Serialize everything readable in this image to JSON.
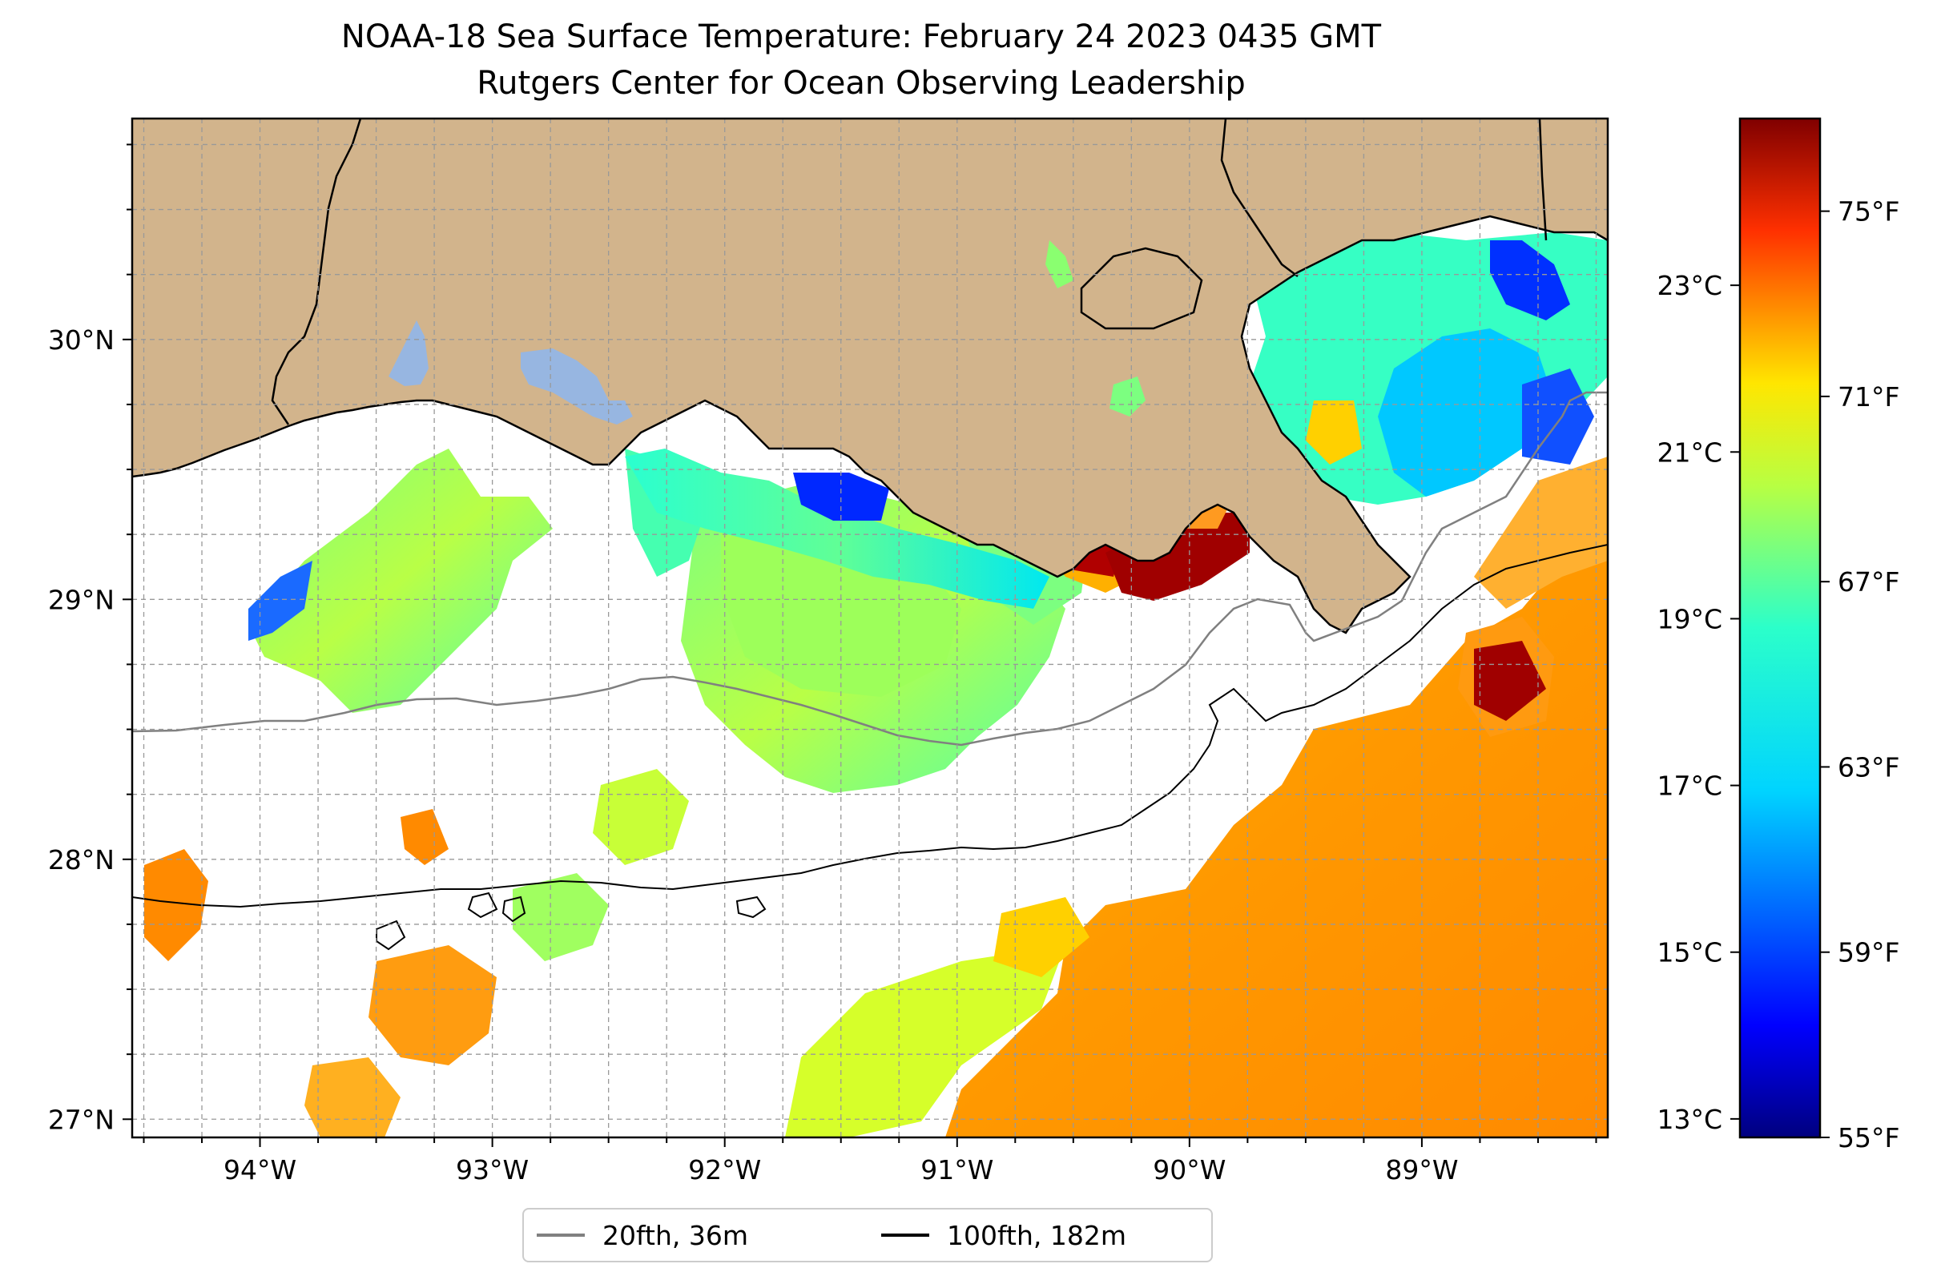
{
  "title": "NOAA-18 Sea Surface Temperature: February 24 2023 0435 GMT",
  "subtitle": "Rutgers Center for Ocean Observing Leadership",
  "map": {
    "lon_range": [
      -94.55,
      -88.2
    ],
    "lat_range": [
      26.93,
      30.85
    ],
    "lon_ticks": [
      {
        "value": -94,
        "label": "94°W"
      },
      {
        "value": -93,
        "label": "93°W"
      },
      {
        "value": -92,
        "label": "92°W"
      },
      {
        "value": -91,
        "label": "91°W"
      },
      {
        "value": -90,
        "label": "90°W"
      },
      {
        "value": -89,
        "label": "89°W"
      }
    ],
    "lat_ticks": [
      {
        "value": 30,
        "label": "30°N"
      },
      {
        "value": 29,
        "label": "29°N"
      },
      {
        "value": 28,
        "label": "28°N"
      },
      {
        "value": 27,
        "label": "27°N"
      }
    ],
    "grid": "dashed, every 0.25°",
    "land_color": "#d2b48c",
    "lake_color": "#97b6e1",
    "water_no_data_color": "#ffffff"
  },
  "legend": {
    "items": [
      {
        "label": "20fth, 36m",
        "color": "#808080"
      },
      {
        "label": "100fth, 182m",
        "color": "#000000"
      }
    ]
  },
  "colorbar": {
    "colormap": "jet",
    "range_f": [
      55,
      77
    ],
    "fahrenheit_ticks": [
      {
        "value": 55,
        "label": "55°F"
      },
      {
        "value": 59,
        "label": "59°F"
      },
      {
        "value": 63,
        "label": "63°F"
      },
      {
        "value": 67,
        "label": "67°F"
      },
      {
        "value": 71,
        "label": "71°F"
      },
      {
        "value": 75,
        "label": "75°F"
      }
    ],
    "celsius_ticks": [
      {
        "value": 13,
        "label": "13°C"
      },
      {
        "value": 15,
        "label": "15°C"
      },
      {
        "value": 17,
        "label": "17°C"
      },
      {
        "value": 19,
        "label": "19°C"
      },
      {
        "value": 21,
        "label": "21°C"
      },
      {
        "value": 23,
        "label": "23°C"
      }
    ]
  }
}
